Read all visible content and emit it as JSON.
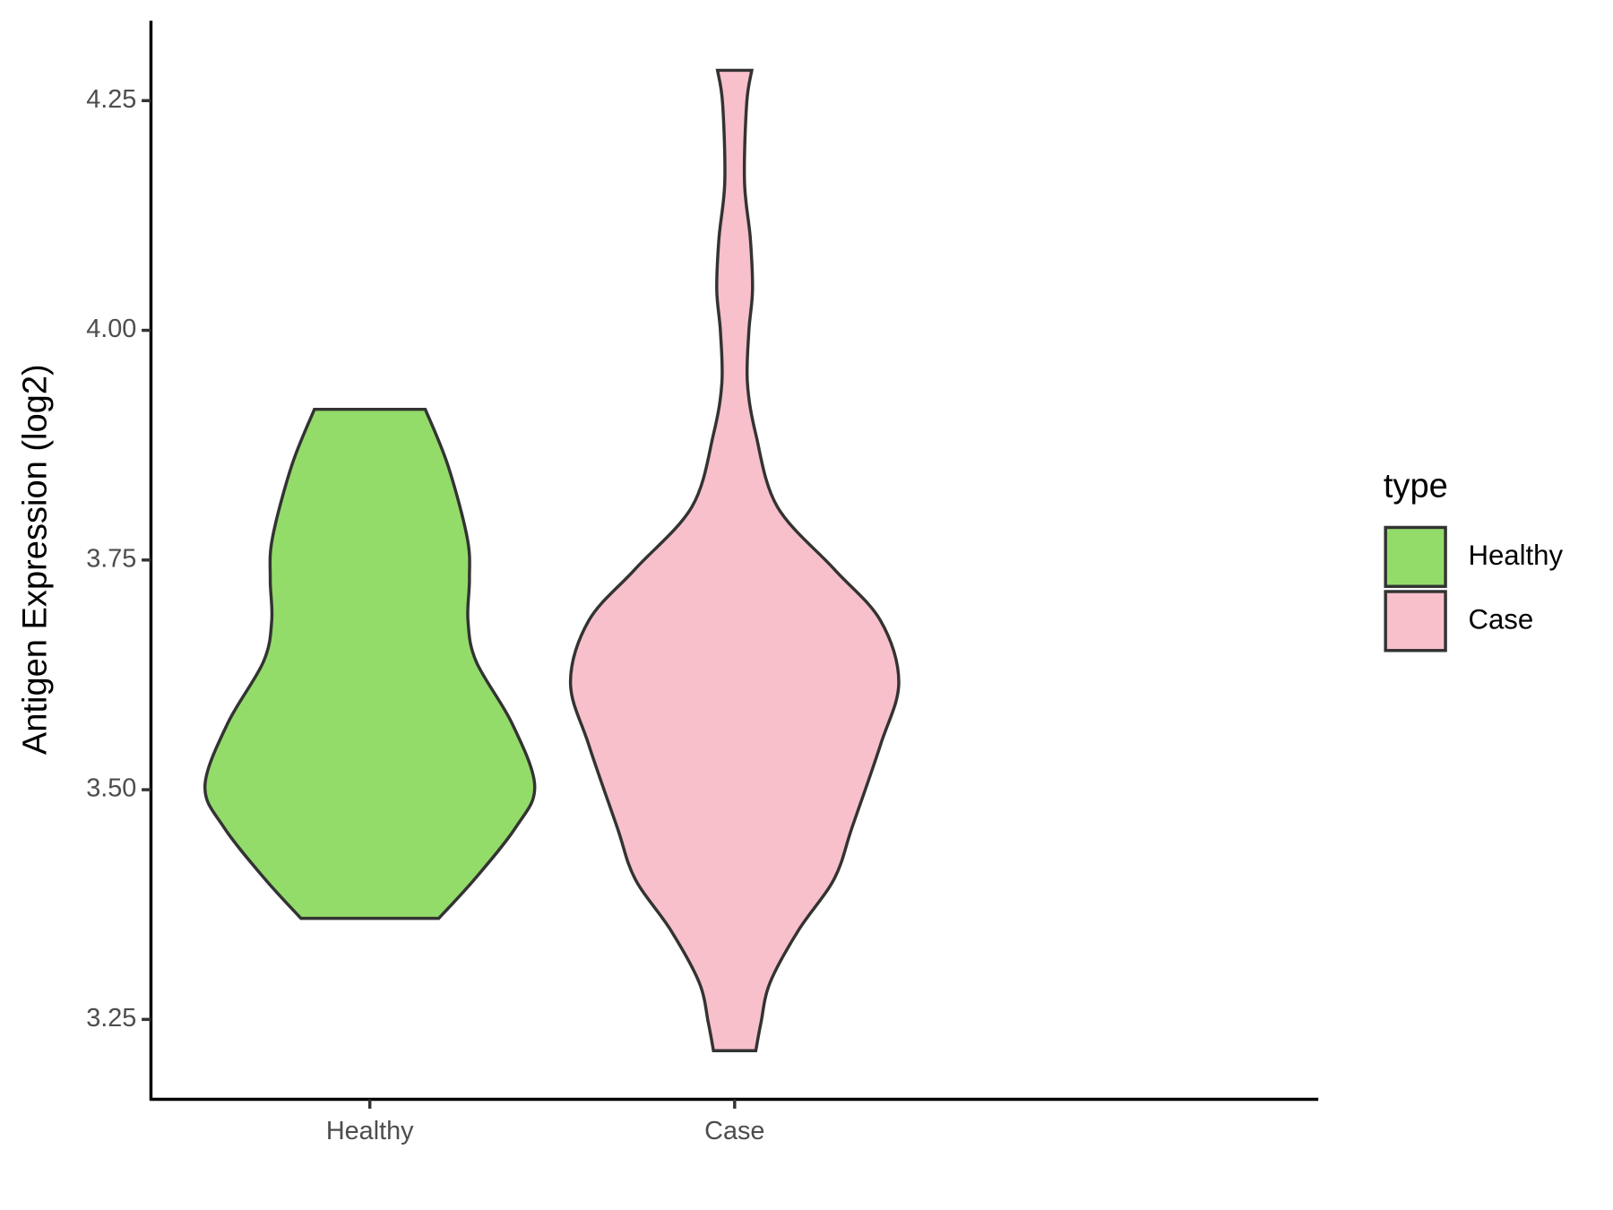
{
  "chart_data": {
    "type": "violin",
    "y_label": "Antigen Expression (log2)",
    "categories": [
      "Healthy",
      "Case"
    ],
    "ylim": [
      3.163,
      4.337
    ],
    "yticks": [
      3.25,
      {
        "value": 3.5,
        "label": "3.50"
      },
      3.75,
      {
        "value": 4,
        "label": "4.00"
      },
      4.25
    ],
    "legend_title": "type",
    "legend_position": "right",
    "series": [
      {
        "name": "Healthy",
        "color": "#93DC6A",
        "y": [
          3.914,
          3.853,
          3.774,
          3.729,
          3.684,
          3.639,
          3.572,
          3.504,
          3.459,
          3.403,
          3.36
        ],
        "width": [
          0.152,
          0.214,
          0.267,
          0.273,
          0.269,
          0.292,
          0.39,
          0.452,
          0.4,
          0.288,
          0.189
        ]
      },
      {
        "name": "Case",
        "color": "#F8C0CB",
        "y": [
          4.283,
          4.247,
          4.162,
          4.1,
          4.044,
          3.999,
          3.943,
          3.887,
          3.808,
          3.74,
          3.684,
          3.617,
          3.549,
          3.459,
          3.403,
          3.347,
          3.29,
          3.246,
          3.216
        ],
        "width": [
          0.047,
          0.033,
          0.027,
          0.043,
          0.049,
          0.039,
          0.035,
          0.058,
          0.117,
          0.273,
          0.4,
          0.45,
          0.4,
          0.322,
          0.273,
          0.175,
          0.097,
          0.072,
          0.058
        ]
      }
    ]
  }
}
